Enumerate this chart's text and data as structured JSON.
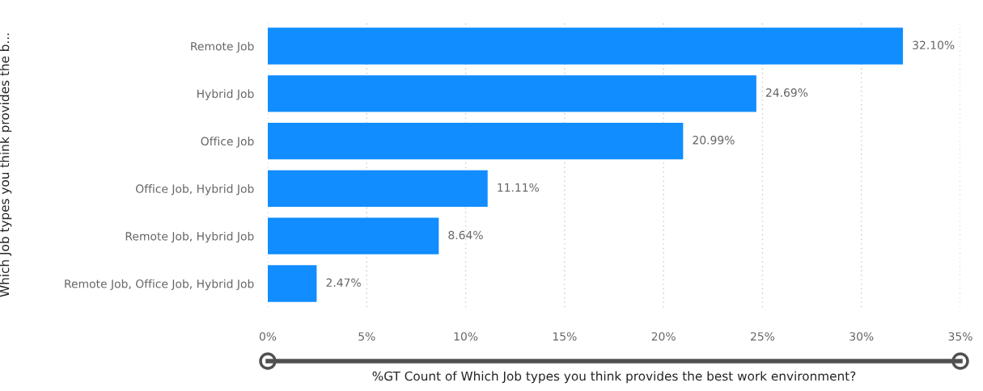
{
  "chart_data": {
    "type": "bar",
    "orientation": "horizontal",
    "categories": [
      "Remote Job",
      "Hybrid Job",
      "Office Job",
      "Office Job, Hybrid Job",
      "Remote Job, Hybrid Job",
      "Remote Job, Office Job, Hybrid Job"
    ],
    "values": [
      32.1,
      24.69,
      20.99,
      11.11,
      8.64,
      2.47
    ],
    "value_labels": [
      "32.10%",
      "24.69%",
      "20.99%",
      "11.11%",
      "8.64%",
      "2.47%"
    ],
    "color": "#118dff",
    "xlim": [
      0,
      35
    ],
    "xticks": [
      {
        "value": 0,
        "label": "0%"
      },
      {
        "value": 5,
        "label": "5%"
      },
      {
        "value": 10,
        "label": "10%"
      },
      {
        "value": 15,
        "label": "15%"
      },
      {
        "value": 20,
        "label": "20%"
      },
      {
        "value": 25,
        "label": "25%"
      },
      {
        "value": 30,
        "label": "30%"
      },
      {
        "value": 35,
        "label": "35%"
      }
    ],
    "grid": "x",
    "xlabel": "%GT Count of Which Job types you think provides the best work environment?",
    "ylabel": "Which Job types you think provides the b..."
  }
}
